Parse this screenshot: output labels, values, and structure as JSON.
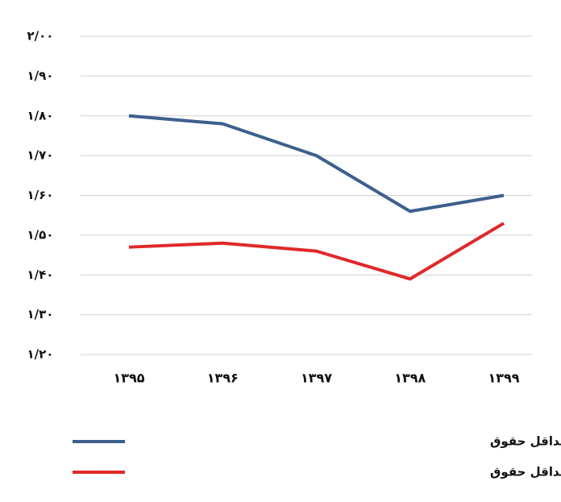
{
  "chart_data": {
    "type": "line",
    "categories": [
      "۱۳۹۵",
      "۱۳۹۶",
      "۱۳۹۷",
      "۱۳۹۸",
      "۱۳۹۹"
    ],
    "series": [
      {
        "name": "متوسط مستمری و کمکهای جنبی بازنشستگان به حداقل حقوق",
        "color": "#3d5f8c",
        "values": [
          1.8,
          1.78,
          1.7,
          1.56,
          1.6
        ]
      },
      {
        "name": "متوسط دوسال آخر دستمزد بیمه شدگان به حداقل حقوق",
        "color": "#e0282a",
        "values": [
          1.47,
          1.48,
          1.46,
          1.39,
          1.53
        ]
      }
    ],
    "ylim": [
      1.2,
      2.0
    ],
    "yticks": [
      {
        "value": 1.2,
        "label": "۱/۲۰"
      },
      {
        "value": 1.3,
        "label": "۱/۳۰"
      },
      {
        "value": 1.4,
        "label": "۱/۴۰"
      },
      {
        "value": 1.5,
        "label": "۱/۵۰"
      },
      {
        "value": 1.6,
        "label": "۱/۶۰"
      },
      {
        "value": 1.7,
        "label": "۱/۷۰"
      },
      {
        "value": 1.8,
        "label": "۱/۸۰"
      },
      {
        "value": 1.9,
        "label": "۱/۹۰"
      },
      {
        "value": 2.0,
        "label": "۲/۰۰"
      }
    ],
    "grid": true
  }
}
